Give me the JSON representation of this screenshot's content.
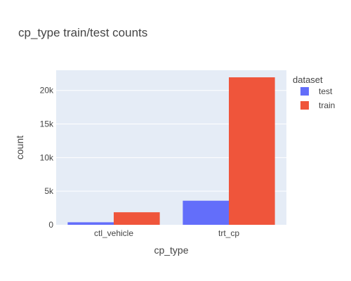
{
  "chart_data": {
    "type": "bar",
    "title": "cp_type train/test counts",
    "xlabel": "cp_type",
    "ylabel": "count",
    "categories": [
      "ctl_vehicle",
      "trt_cp"
    ],
    "series": [
      {
        "name": "test",
        "values": [
          376,
          3585
        ],
        "color": "#636efa"
      },
      {
        "name": "train",
        "values": [
          1866,
          21948
        ],
        "color": "#ef553b"
      }
    ],
    "ylim": [
      0,
      23000
    ],
    "yticks": [
      0,
      5000,
      10000,
      15000,
      20000
    ],
    "ytick_labels": [
      "0",
      "5k",
      "10k",
      "15k",
      "20k"
    ],
    "legend_title": "dataset",
    "legend_position": "top-right",
    "grid": true,
    "plot_background": "#e5ecf6"
  }
}
